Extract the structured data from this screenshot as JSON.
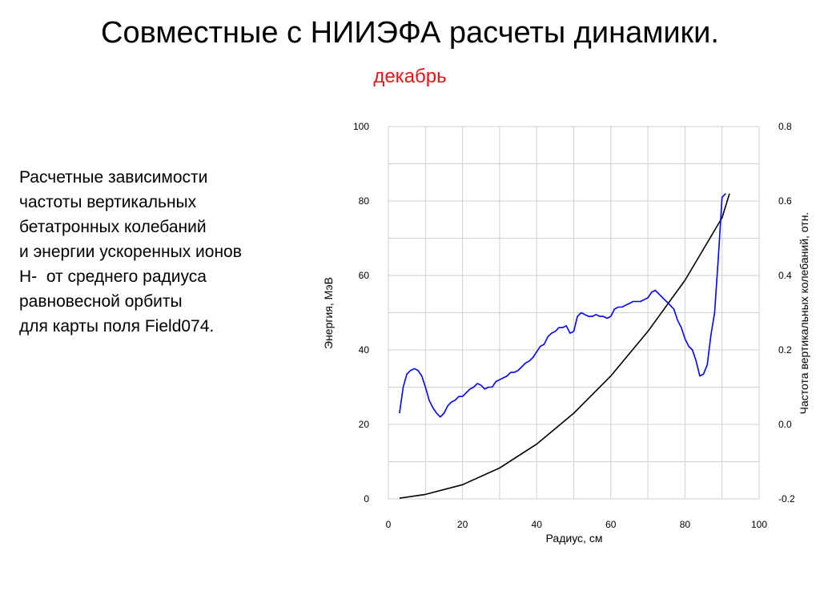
{
  "slide": {
    "title": "Совместные с НИИЭФА расчеты динамики.",
    "subtitle": "декабрь",
    "subtitle_color": "#e8121b",
    "description_lines": [
      "Расчетные зависимости",
      "частоты вертикальных",
      "бетатронных колебаний",
      "и энергии ускоренных ионов",
      "H-  от среднего радиуса",
      "равновесной орбиты",
      "для карты поля Field074."
    ]
  },
  "chart_data": {
    "type": "line",
    "xlabel": "Радиус, см",
    "ylabel": "Энергия, МэВ",
    "y2label": "Частота вертикальных колебаний, отн.",
    "xlim": [
      0,
      100
    ],
    "ylim": [
      0,
      100
    ],
    "y2lim": [
      -0.2,
      0.8
    ],
    "xticks": [
      "0",
      "20",
      "40",
      "60",
      "80",
      "100"
    ],
    "yticks": [
      "0",
      "20",
      "40",
      "60",
      "80",
      "100"
    ],
    "y2ticks": [
      "-0.2",
      "0.0",
      "0.2",
      "0.4",
      "0.6",
      "0.8"
    ],
    "grid": true,
    "series": [
      {
        "color": "#000000",
        "axis": "left",
        "x": [
          3,
          10,
          20,
          30,
          40,
          50,
          60,
          70,
          80,
          90,
          92
        ],
        "y": [
          0.2,
          1.2,
          3.8,
          8.3,
          14.7,
          23.0,
          33.0,
          45.0,
          58.7,
          75.5,
          82.0
        ]
      },
      {
        "color": "#0000ff",
        "axis": "right",
        "x": [
          3,
          4,
          5,
          6,
          7,
          8,
          9,
          10,
          11,
          12,
          13,
          14,
          15,
          16,
          17,
          18,
          19,
          20,
          21,
          22,
          23,
          24,
          25,
          26,
          27,
          28,
          29,
          30,
          31,
          32,
          33,
          34,
          35,
          36,
          37,
          38,
          39,
          40,
          41,
          42,
          43,
          44,
          45,
          46,
          47,
          48,
          49,
          50,
          51,
          52,
          53,
          54,
          55,
          56,
          57,
          58,
          59,
          60,
          61,
          62,
          63,
          64,
          65,
          66,
          67,
          68,
          69,
          70,
          71,
          72,
          73,
          74,
          75,
          76,
          77,
          78,
          79,
          80,
          81,
          82,
          83,
          84,
          85,
          86,
          87,
          88,
          89,
          90,
          91
        ],
        "y": [
          0.03,
          0.1,
          0.135,
          0.145,
          0.15,
          0.145,
          0.13,
          0.1,
          0.065,
          0.045,
          0.03,
          0.02,
          0.03,
          0.05,
          0.06,
          0.065,
          0.075,
          0.075,
          0.085,
          0.095,
          0.1,
          0.11,
          0.105,
          0.095,
          0.1,
          0.1,
          0.115,
          0.12,
          0.125,
          0.13,
          0.14,
          0.14,
          0.145,
          0.155,
          0.165,
          0.17,
          0.18,
          0.195,
          0.21,
          0.215,
          0.235,
          0.245,
          0.25,
          0.26,
          0.26,
          0.265,
          0.245,
          0.25,
          0.29,
          0.3,
          0.295,
          0.29,
          0.29,
          0.295,
          0.29,
          0.29,
          0.285,
          0.29,
          0.31,
          0.315,
          0.315,
          0.32,
          0.325,
          0.33,
          0.33,
          0.33,
          0.335,
          0.34,
          0.355,
          0.36,
          0.35,
          0.34,
          0.33,
          0.32,
          0.31,
          0.28,
          0.26,
          0.23,
          0.21,
          0.2,
          0.17,
          0.13,
          0.135,
          0.16,
          0.24,
          0.3,
          0.45,
          0.61,
          0.62
        ]
      }
    ]
  }
}
